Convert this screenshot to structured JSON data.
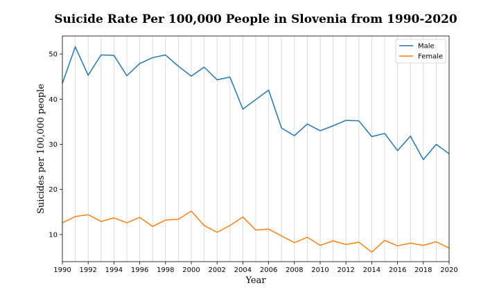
{
  "chart_data": {
    "type": "line",
    "title": "Suicide Rate Per 100,000 People in Slovenia from 1990-2020",
    "xlabel": "Year",
    "ylabel": "Suicides per 100,000 people",
    "xlim": [
      1990,
      2020
    ],
    "ylim": [
      4,
      54
    ],
    "x_ticks": [
      1990,
      1992,
      1994,
      1996,
      1998,
      2000,
      2002,
      2004,
      2006,
      2008,
      2010,
      2012,
      2014,
      2016,
      2018,
      2020
    ],
    "y_ticks": [
      10,
      20,
      30,
      40,
      50
    ],
    "grid": "vertical gridlines at each year",
    "legend_position": "top-right",
    "x": [
      1990,
      1991,
      1992,
      1993,
      1994,
      1995,
      1996,
      1997,
      1998,
      1999,
      2000,
      2001,
      2002,
      2003,
      2004,
      2005,
      2006,
      2007,
      2008,
      2009,
      2010,
      2011,
      2012,
      2013,
      2014,
      2015,
      2016,
      2017,
      2018,
      2019,
      2020
    ],
    "series": [
      {
        "name": "Male",
        "color": "#1f77b4",
        "values": [
          43.5,
          51.6,
          45.3,
          49.8,
          49.7,
          45.2,
          47.9,
          49.2,
          49.8,
          47.3,
          45.1,
          47.1,
          44.3,
          44.9,
          37.8,
          39.9,
          42.0,
          33.6,
          31.9,
          34.5,
          33.0,
          34.1,
          35.3,
          35.2,
          31.7,
          32.4,
          28.6,
          31.8,
          26.6,
          30.0,
          27.9
        ]
      },
      {
        "name": "Female",
        "color": "#ff7f0e",
        "values": [
          12.6,
          14.0,
          14.4,
          12.9,
          13.7,
          12.6,
          13.8,
          11.8,
          13.2,
          13.4,
          15.2,
          12.0,
          10.5,
          12.0,
          13.9,
          11.0,
          11.2,
          9.7,
          8.2,
          9.4,
          7.6,
          8.6,
          7.8,
          8.3,
          6.1,
          8.7,
          7.5,
          8.1,
          7.6,
          8.4,
          7.0
        ]
      }
    ]
  }
}
